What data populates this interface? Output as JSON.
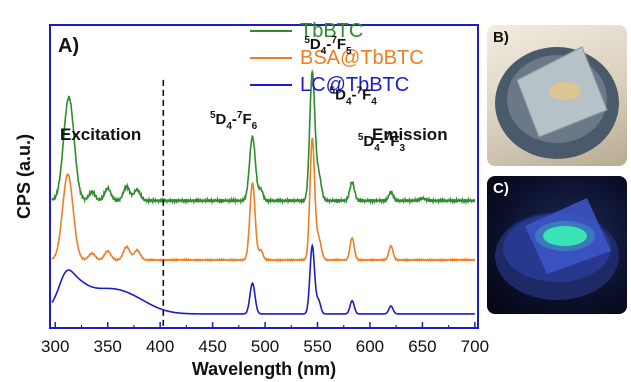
{
  "chart_data": {
    "type": "line",
    "panel_label": "A)",
    "xlabel": "Wavelength (nm)",
    "ylabel": "CPS (a.u.)",
    "xlim": [
      295,
      703
    ],
    "x_ticks": [
      300,
      350,
      400,
      450,
      500,
      550,
      600,
      650,
      700
    ],
    "grid": false,
    "legend_position": "top-right",
    "divider_x": 403,
    "region_labels": {
      "excitation": "Excitation",
      "emission": "Emission"
    },
    "series": [
      {
        "name": "TbBTC",
        "color": "#2e8b2e",
        "baseline": 2.6,
        "noise": 0.04,
        "peaks": [
          [
            313,
            2.35,
            5
          ],
          [
            335,
            0.2,
            3
          ],
          [
            350,
            0.28,
            3
          ],
          [
            368,
            0.32,
            3
          ],
          [
            378,
            0.25,
            3
          ],
          [
            488,
            1.45,
            2.8
          ],
          [
            496,
            0.25,
            2
          ],
          [
            545,
            2.9,
            2.4
          ],
          [
            551,
            0.6,
            2.5
          ],
          [
            583,
            0.42,
            2.2
          ],
          [
            620,
            0.2,
            2
          ],
          [
            650,
            0.05,
            3
          ]
        ]
      },
      {
        "name": "BSA@TbBTC",
        "color": "#f07d22",
        "baseline": 1.25,
        "noise": 0.015,
        "peaks": [
          [
            312,
            1.95,
            5
          ],
          [
            335,
            0.15,
            3
          ],
          [
            350,
            0.2,
            3
          ],
          [
            368,
            0.3,
            3
          ],
          [
            378,
            0.22,
            3
          ],
          [
            488,
            1.75,
            2.5
          ],
          [
            496,
            0.22,
            2
          ],
          [
            545,
            2.75,
            2.2
          ],
          [
            551,
            0.5,
            2.5
          ],
          [
            583,
            0.5,
            2
          ],
          [
            620,
            0.32,
            2
          ]
        ]
      },
      {
        "name": "LC@TbBTC",
        "color": "#1d1dc8",
        "baseline": 0.02,
        "noise": 0.0,
        "peaks": [
          [
            310,
            0.3,
            6
          ],
          [
            488,
            0.7,
            2.4
          ],
          [
            545,
            1.55,
            2.2
          ],
          [
            551,
            0.3,
            2
          ],
          [
            583,
            0.3,
            2
          ],
          [
            620,
            0.18,
            2
          ]
        ],
        "broad": [
          [
            315,
            0.55,
            12
          ],
          [
            342,
            0.45,
            22
          ],
          [
            372,
            0.28,
            20
          ]
        ]
      }
    ],
    "annotations": [
      {
        "id": "ann-7f6",
        "level": "5",
        "base": "D",
        "sub": "4",
        "sep": "-",
        "level2": "7",
        "base2": "F",
        "sub2": "6",
        "x": 470,
        "y": 4.35
      },
      {
        "id": "ann-7f5",
        "level": "5",
        "base": "D",
        "sub": "4",
        "sep": "-",
        "level2": "7",
        "base2": "F",
        "sub2": "5",
        "x": 560,
        "y": 6.05
      },
      {
        "id": "ann-7f4",
        "level": "5",
        "base": "D",
        "sub": "4",
        "sep": "-",
        "level2": "7",
        "base2": "F",
        "sub2": "4",
        "x": 584,
        "y": 4.9
      },
      {
        "id": "ann-7f3",
        "level": "5",
        "base": "D",
        "sub": "4",
        "sep": "-",
        "level2": "7",
        "base2": "F",
        "sub2": "3",
        "x": 611,
        "y": 3.85
      }
    ]
  },
  "photos": {
    "b": {
      "label": "B)"
    },
    "c": {
      "label": "C)"
    }
  }
}
